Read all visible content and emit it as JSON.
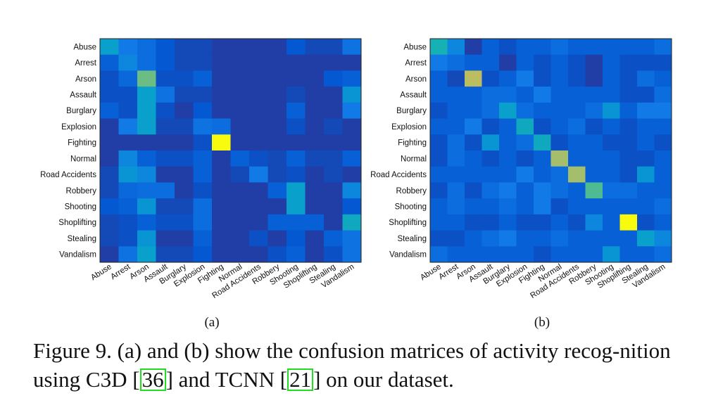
{
  "chart_data": [
    {
      "type": "heatmap",
      "title": "",
      "panel_label": "(a)",
      "colormap": "parula",
      "range": [
        0,
        1
      ],
      "labels": [
        "Abuse",
        "Arrest",
        "Arson",
        "Assault",
        "Burglary",
        "Explosion",
        "Fighting",
        "Normal",
        "Road Accidents",
        "Robbery",
        "Shooting",
        "Shoplifting",
        "Stealing",
        "Vandalism"
      ],
      "matrix": [
        [
          0.4,
          0.25,
          0.2,
          0.12,
          0.08,
          0.08,
          0.05,
          0.05,
          0.05,
          0.05,
          0.12,
          0.08,
          0.08,
          0.22
        ],
        [
          0.15,
          0.3,
          0.2,
          0.12,
          0.08,
          0.08,
          0.05,
          0.05,
          0.05,
          0.05,
          0.05,
          0.05,
          0.05,
          0.05
        ],
        [
          0.1,
          0.18,
          0.65,
          0.1,
          0.1,
          0.15,
          0.05,
          0.05,
          0.05,
          0.05,
          0.05,
          0.05,
          0.12,
          0.15
        ],
        [
          0.1,
          0.1,
          0.4,
          0.22,
          0.08,
          0.08,
          0.05,
          0.05,
          0.05,
          0.05,
          0.08,
          0.05,
          0.05,
          0.35
        ],
        [
          0.15,
          0.1,
          0.4,
          0.1,
          0.05,
          0.12,
          0.05,
          0.05,
          0.05,
          0.05,
          0.15,
          0.05,
          0.05,
          0.25
        ],
        [
          0.05,
          0.25,
          0.4,
          0.08,
          0.08,
          0.22,
          0.2,
          0.05,
          0.05,
          0.05,
          0.1,
          0.05,
          0.08,
          0.05
        ],
        [
          0.05,
          0.05,
          0.05,
          0.05,
          0.05,
          0.1,
          1.0,
          0.05,
          0.05,
          0.05,
          0.05,
          0.05,
          0.05,
          0.05
        ],
        [
          0.05,
          0.3,
          0.15,
          0.1,
          0.1,
          0.15,
          0.05,
          0.15,
          0.1,
          0.08,
          0.15,
          0.08,
          0.08,
          0.15
        ],
        [
          0.08,
          0.35,
          0.3,
          0.05,
          0.05,
          0.15,
          0.05,
          0.08,
          0.25,
          0.08,
          0.1,
          0.05,
          0.08,
          0.05
        ],
        [
          0.08,
          0.18,
          0.2,
          0.2,
          0.05,
          0.1,
          0.05,
          0.05,
          0.05,
          0.15,
          0.4,
          0.05,
          0.05,
          0.3
        ],
        [
          0.12,
          0.15,
          0.35,
          0.08,
          0.08,
          0.2,
          0.05,
          0.05,
          0.05,
          0.05,
          0.4,
          0.05,
          0.05,
          0.12
        ],
        [
          0.08,
          0.1,
          0.15,
          0.1,
          0.1,
          0.2,
          0.05,
          0.05,
          0.05,
          0.15,
          0.15,
          0.15,
          0.05,
          0.45
        ],
        [
          0.08,
          0.1,
          0.35,
          0.05,
          0.05,
          0.15,
          0.05,
          0.05,
          0.1,
          0.05,
          0.12,
          0.05,
          0.15,
          0.22
        ],
        [
          0.05,
          0.22,
          0.4,
          0.08,
          0.08,
          0.12,
          0.05,
          0.05,
          0.05,
          0.1,
          0.15,
          0.05,
          0.1,
          0.22
        ]
      ]
    },
    {
      "type": "heatmap",
      "title": "",
      "panel_label": "(b)",
      "colormap": "parula",
      "range": [
        0,
        1
      ],
      "labels": [
        "Abuse",
        "Arrest",
        "Arson",
        "Assault",
        "Burglary",
        "Explosion",
        "Fighting",
        "Normal",
        "Road Accidents",
        "Robbery",
        "Shooting",
        "Shoplifting",
        "Stealing",
        "Vandalism"
      ],
      "matrix": [
        [
          0.5,
          0.3,
          0.05,
          0.15,
          0.1,
          0.15,
          0.15,
          0.2,
          0.15,
          0.15,
          0.15,
          0.15,
          0.15,
          0.2
        ],
        [
          0.25,
          0.2,
          0.15,
          0.15,
          0.05,
          0.15,
          0.1,
          0.15,
          0.1,
          0.05,
          0.15,
          0.1,
          0.1,
          0.1
        ],
        [
          0.15,
          0.08,
          0.8,
          0.1,
          0.15,
          0.25,
          0.1,
          0.15,
          0.1,
          0.05,
          0.15,
          0.1,
          0.2,
          0.15
        ],
        [
          0.15,
          0.15,
          0.15,
          0.2,
          0.2,
          0.15,
          0.25,
          0.15,
          0.15,
          0.15,
          0.15,
          0.1,
          0.1,
          0.2
        ],
        [
          0.1,
          0.15,
          0.15,
          0.2,
          0.4,
          0.2,
          0.15,
          0.15,
          0.15,
          0.2,
          0.35,
          0.15,
          0.25,
          0.25
        ],
        [
          0.15,
          0.15,
          0.25,
          0.1,
          0.15,
          0.45,
          0.1,
          0.15,
          0.2,
          0.1,
          0.15,
          0.1,
          0.15,
          0.15
        ],
        [
          0.1,
          0.2,
          0.1,
          0.35,
          0.15,
          0.2,
          0.45,
          0.1,
          0.15,
          0.15,
          0.1,
          0.1,
          0.15,
          0.1
        ],
        [
          0.1,
          0.2,
          0.15,
          0.1,
          0.15,
          0.1,
          0.15,
          0.75,
          0.15,
          0.15,
          0.15,
          0.1,
          0.1,
          0.15
        ],
        [
          0.15,
          0.15,
          0.15,
          0.15,
          0.15,
          0.25,
          0.15,
          0.2,
          0.75,
          0.15,
          0.15,
          0.1,
          0.35,
          0.15
        ],
        [
          0.1,
          0.2,
          0.1,
          0.2,
          0.25,
          0.15,
          0.25,
          0.2,
          0.15,
          0.6,
          0.2,
          0.2,
          0.15,
          0.15
        ],
        [
          0.15,
          0.2,
          0.15,
          0.15,
          0.2,
          0.15,
          0.25,
          0.1,
          0.15,
          0.15,
          0.15,
          0.15,
          0.15,
          0.2
        ],
        [
          0.15,
          0.15,
          0.1,
          0.1,
          0.15,
          0.1,
          0.1,
          0.15,
          0.1,
          0.3,
          0.15,
          1.0,
          0.1,
          0.15
        ],
        [
          0.1,
          0.1,
          0.15,
          0.2,
          0.25,
          0.15,
          0.15,
          0.2,
          0.15,
          0.15,
          0.15,
          0.15,
          0.4,
          0.3
        ],
        [
          0.2,
          0.15,
          0.15,
          0.15,
          0.15,
          0.15,
          0.1,
          0.15,
          0.15,
          0.15,
          0.35,
          0.15,
          0.15,
          0.2
        ]
      ]
    }
  ],
  "caption": {
    "prefix": "Figure 9. (a) and (b) show the confusion matrices of activity recog-nition using C3D [",
    "ref1": "36",
    "middle": "] and TCNN [",
    "ref2": "21",
    "suffix": "] on our dataset."
  }
}
